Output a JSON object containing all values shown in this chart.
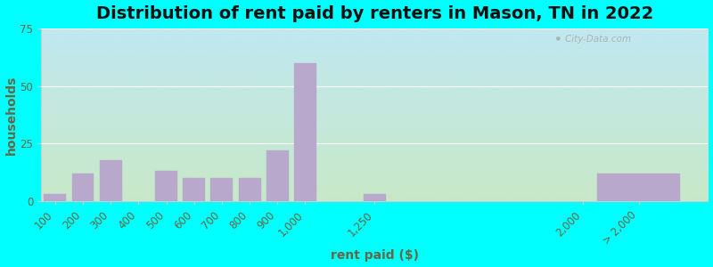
{
  "title": "Distribution of rent paid by renters in Mason, TN in 2022",
  "xlabel": "rent paid ($)",
  "ylabel": "households",
  "bar_color": "#b8a8cc",
  "ylim": [
    0,
    75
  ],
  "yticks": [
    0,
    25,
    50,
    75
  ],
  "bg_outer": "#00ffff",
  "bg_top_left": "#c8e8c8",
  "bg_bottom_right": "#c0e8f0",
  "watermark": "City-Data.com",
  "title_fontsize": 14,
  "axis_label_fontsize": 10,
  "tick_fontsize": 8.5,
  "tick_color": "#666644",
  "bar_centers": [
    100,
    200,
    300,
    400,
    500,
    600,
    700,
    800,
    900,
    1000,
    1250,
    2000,
    2200
  ],
  "bar_widths": [
    80,
    80,
    80,
    80,
    80,
    80,
    80,
    80,
    80,
    80,
    80,
    80,
    300
  ],
  "values": [
    3,
    12,
    18,
    0,
    13,
    10,
    10,
    10,
    22,
    60,
    3,
    0,
    12
  ],
  "xtick_positions": [
    100,
    200,
    300,
    400,
    500,
    600,
    700,
    800,
    900,
    1000,
    1250,
    2000,
    2200
  ],
  "xtick_labels": [
    "100",
    "200",
    "300",
    "400",
    "500",
    "600",
    "700",
    "800",
    "900",
    "1,000",
    "1,250",
    "2,000",
    "> 2,000"
  ],
  "xlim": [
    50,
    2450
  ]
}
